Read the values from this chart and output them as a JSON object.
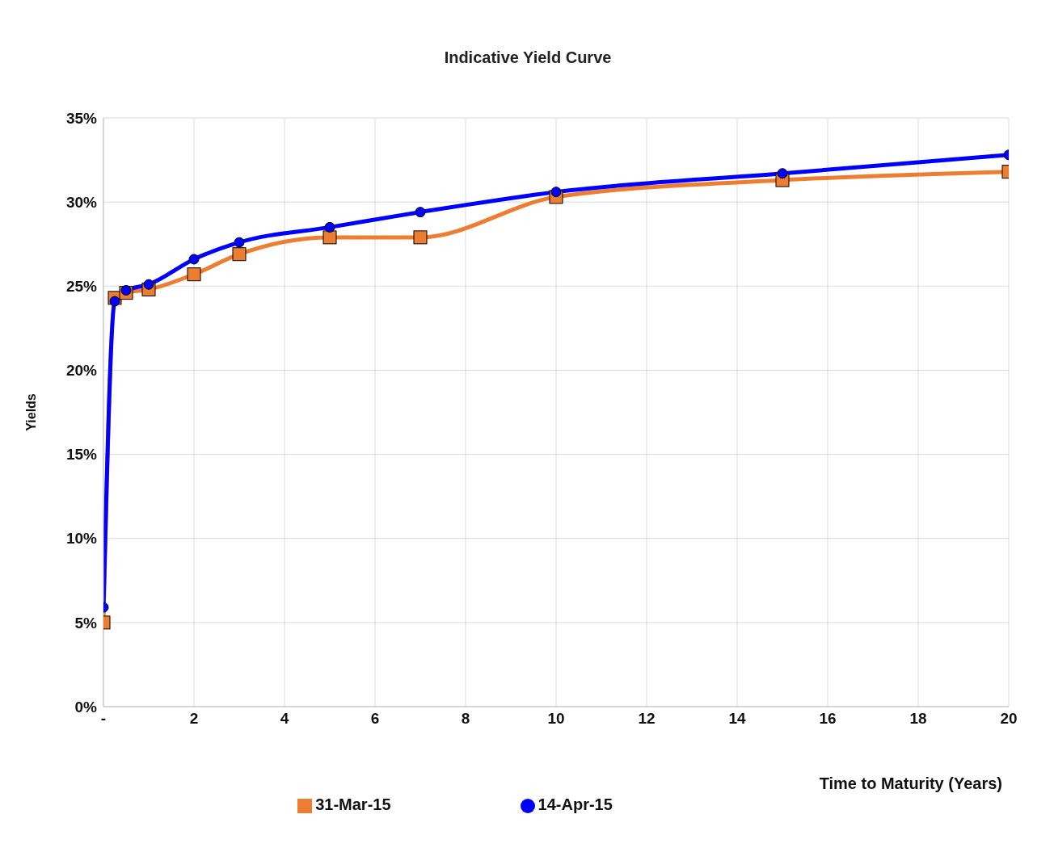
{
  "chart_data": {
    "type": "line",
    "title": "Indicative  Yield Curve",
    "xlabel": "Time to Maturity (Years)",
    "ylabel": "Yields",
    "x": [
      0,
      0.25,
      0.5,
      1,
      2,
      3,
      5,
      7,
      10,
      15,
      20
    ],
    "series": [
      {
        "name": "31-Mar-15",
        "color": "#ed7d31",
        "marker": "square",
        "values": [
          5.0,
          24.3,
          24.6,
          24.8,
          25.7,
          26.9,
          27.9,
          27.9,
          30.3,
          31.3,
          31.8
        ]
      },
      {
        "name": "14-Apr-15",
        "color": "#0000ff",
        "marker": "circle",
        "values": [
          5.9,
          24.1,
          24.75,
          25.1,
          26.6,
          27.6,
          28.5,
          29.4,
          30.6,
          31.7,
          32.8
        ]
      }
    ],
    "xlim": [
      0,
      20
    ],
    "xticks": [
      {
        "value": 0,
        "label": "-"
      },
      2,
      4,
      6,
      8,
      10,
      12,
      14,
      16,
      18,
      20
    ],
    "ylim": [
      0,
      35
    ],
    "yticks": [
      {
        "value": 0,
        "label": "0%"
      },
      {
        "value": 5,
        "label": "5%"
      },
      {
        "value": 10,
        "label": "10%"
      },
      {
        "value": 15,
        "label": "15%"
      },
      {
        "value": 20,
        "label": "20%"
      },
      {
        "value": 25,
        "label": "25%"
      },
      {
        "value": 30,
        "label": "30%"
      },
      {
        "value": 35,
        "label": "35%"
      }
    ],
    "grid": true,
    "legend": "bottom",
    "line_style": "solid"
  }
}
